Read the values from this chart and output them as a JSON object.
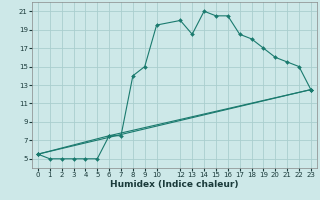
{
  "xlabel": "Humidex (Indice chaleur)",
  "bg_color": "#cde8e8",
  "line_color": "#1a7a6e",
  "grid_color": "#aacece",
  "xlim": [
    -0.5,
    23.5
  ],
  "ylim": [
    4,
    22
  ],
  "xtick_vals": [
    0,
    1,
    2,
    3,
    4,
    5,
    6,
    7,
    8,
    9,
    10,
    12,
    13,
    14,
    15,
    16,
    17,
    18,
    19,
    20,
    21,
    22,
    23
  ],
  "ytick_vals": [
    5,
    7,
    9,
    11,
    13,
    15,
    17,
    19,
    21
  ],
  "line1_x": [
    0,
    1,
    2,
    3,
    4,
    5,
    6,
    7,
    8,
    9,
    10,
    12,
    13,
    14,
    15,
    16,
    17,
    18,
    19,
    20,
    21,
    22,
    23
  ],
  "line1_y": [
    5.5,
    5.0,
    5.0,
    5.0,
    5.0,
    5.0,
    7.5,
    7.5,
    14.0,
    15.0,
    19.5,
    20.0,
    18.5,
    21.0,
    20.5,
    20.5,
    18.5,
    18.0,
    17.0,
    16.0,
    15.5,
    15.0,
    12.5
  ],
  "line2_x": [
    0,
    23
  ],
  "line2_y": [
    5.5,
    12.5
  ],
  "line3_x": [
    0,
    6,
    23
  ],
  "line3_y": [
    5.5,
    7.5,
    12.5
  ],
  "tick_fontsize": 5.0,
  "label_fontsize": 6.5
}
